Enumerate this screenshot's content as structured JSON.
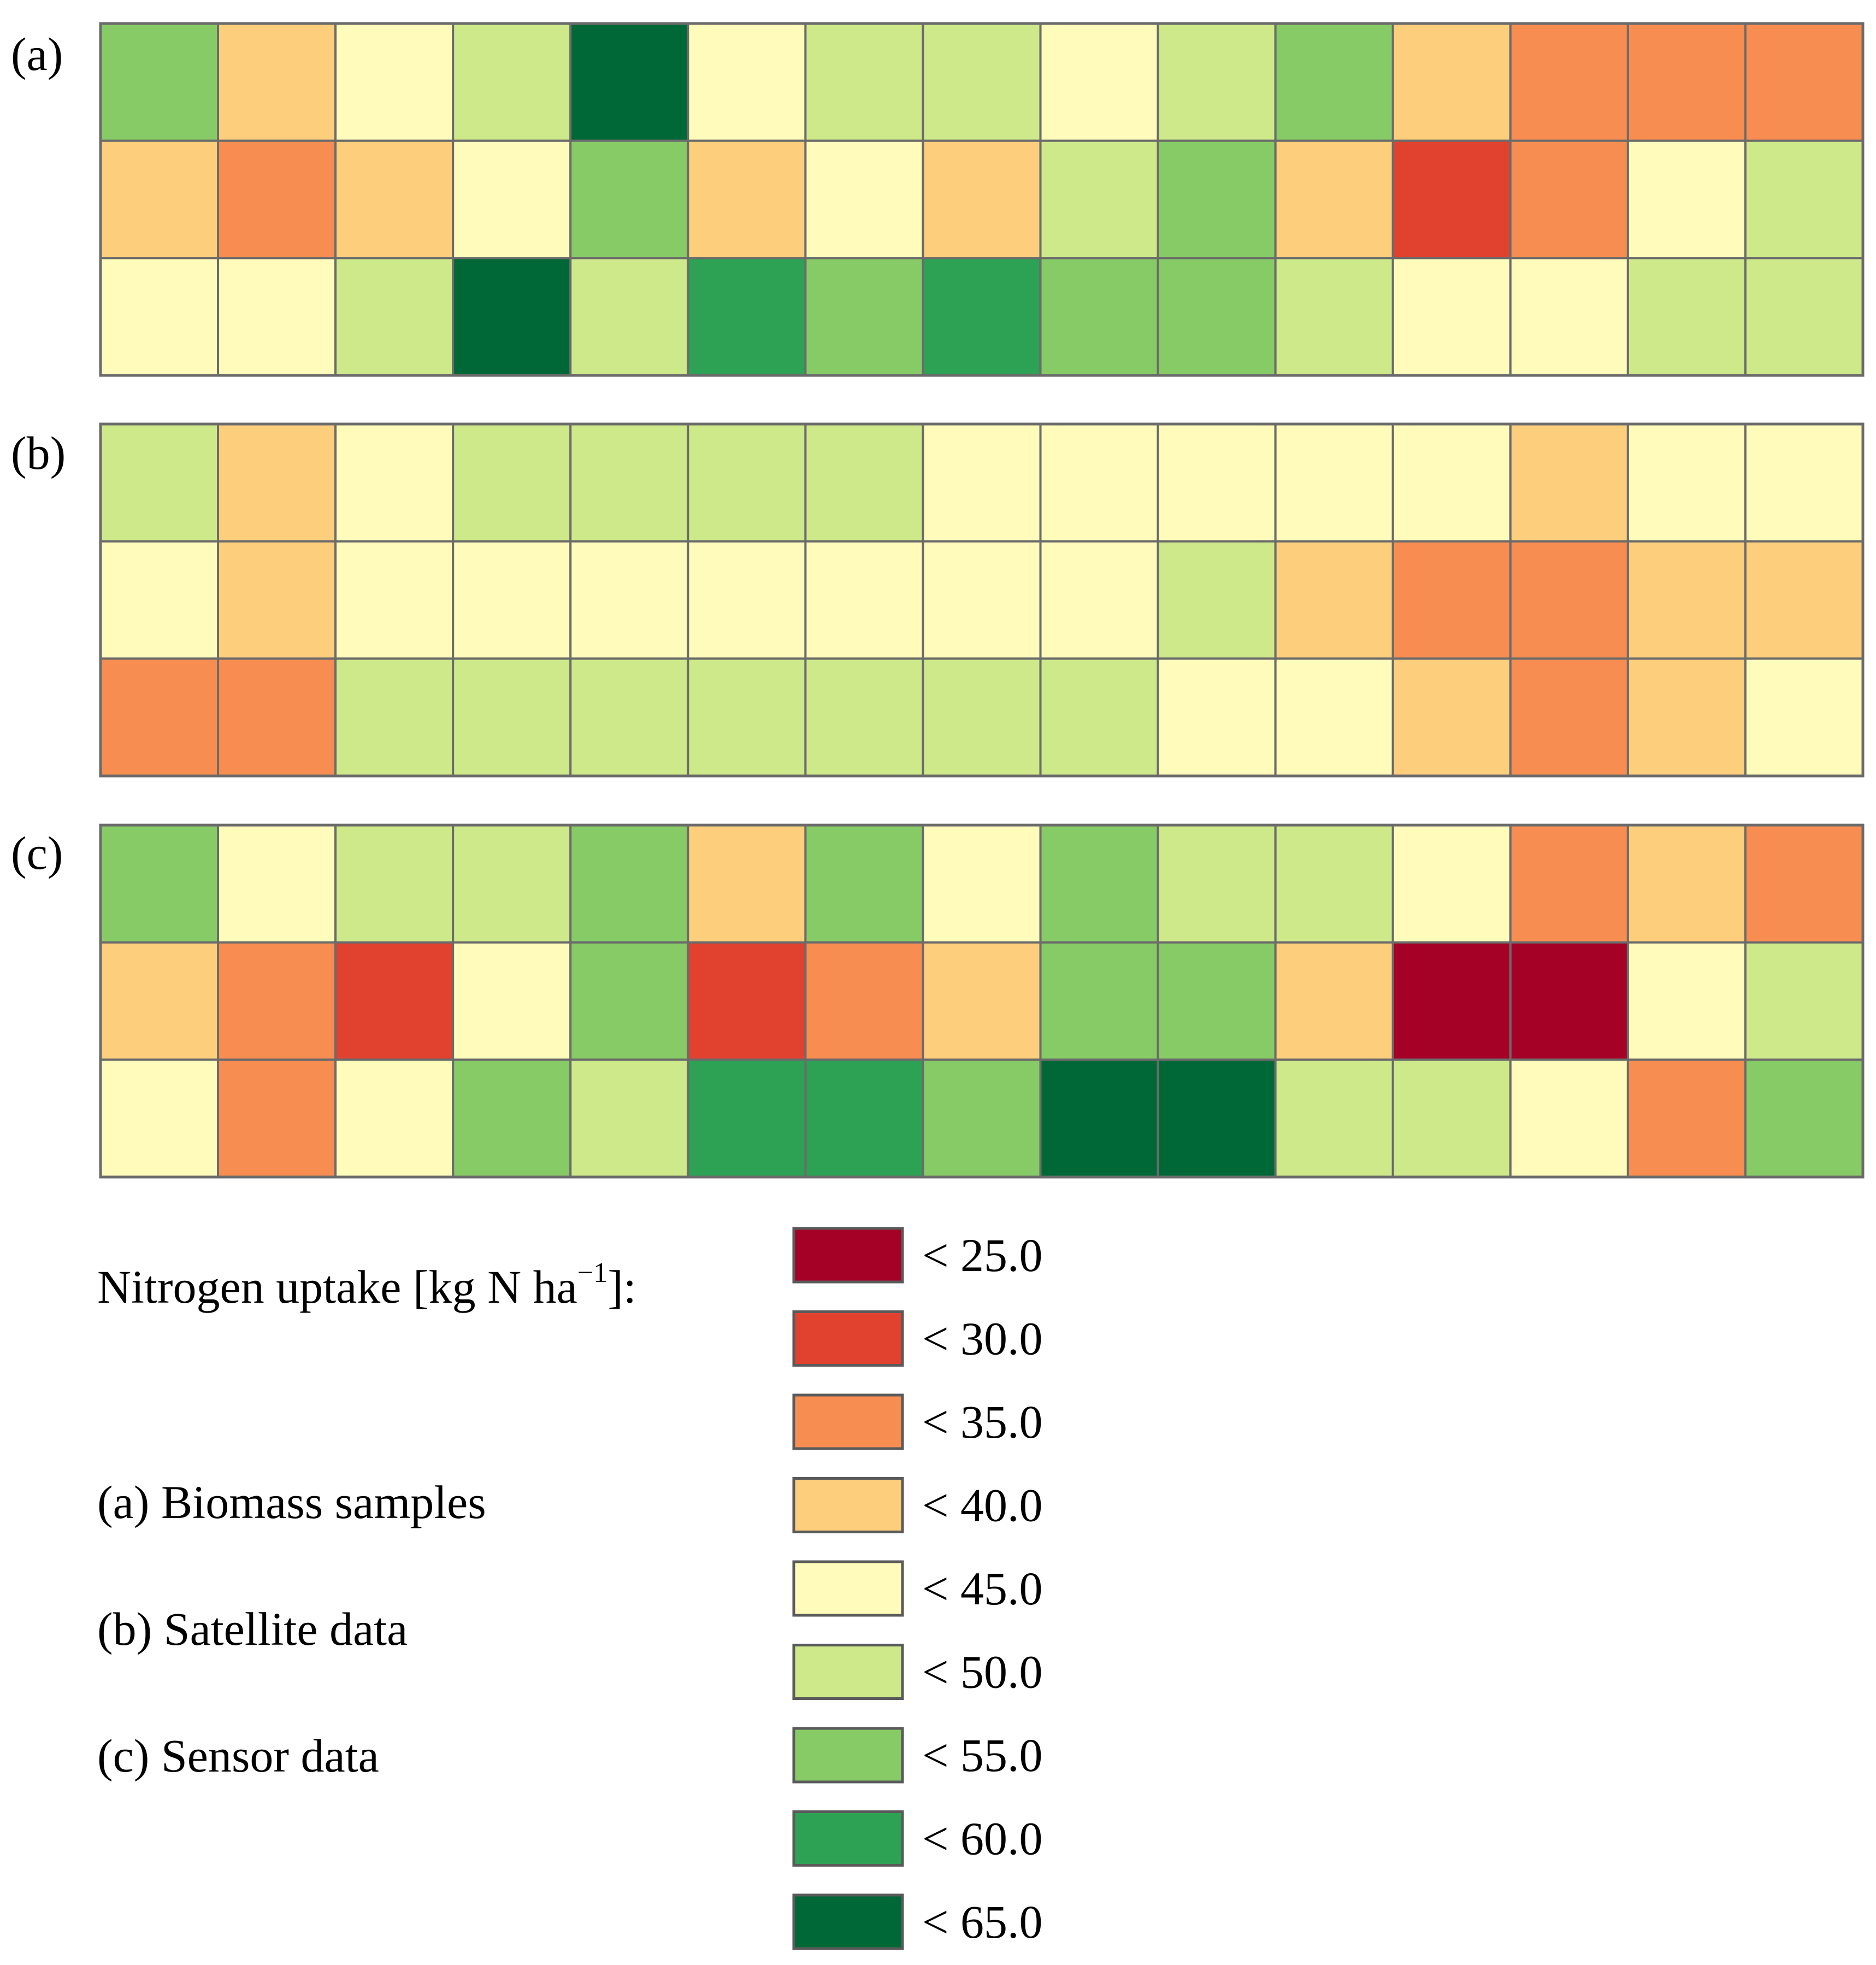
{
  "chart_data": {
    "type": "heatmap",
    "title": "Nitrogen uptake [kg N ha⁻¹]:",
    "rows": 3,
    "columns": 15,
    "legend": {
      "title_main": "Nitrogen uptake [kg N ha",
      "title_sup": "−1",
      "title_end": "]:",
      "classes": [
        {
          "label": "< 25.0",
          "upper": 25.0,
          "color": "#a50026"
        },
        {
          "label": "< 30.0",
          "upper": 30.0,
          "color": "#e0422f"
        },
        {
          "label": "< 35.0",
          "upper": 35.0,
          "color": "#f88d52"
        },
        {
          "label": "< 40.0",
          "upper": 40.0,
          "color": "#fdce7c"
        },
        {
          "label": "< 45.0",
          "upper": 45.0,
          "color": "#fffbbb"
        },
        {
          "label": "< 50.0",
          "upper": 50.0,
          "color": "#cee98a"
        },
        {
          "label": "< 55.0",
          "upper": 55.0,
          "color": "#86cb66"
        },
        {
          "label": "< 60.0",
          "upper": 60.0,
          "color": "#2da154"
        },
        {
          "label": "< 65.0",
          "upper": 65.0,
          "color": "#006837"
        }
      ]
    },
    "panels": [
      {
        "label": "(a)",
        "name": "(a) Biomass samples",
        "class_grid": [
          [
            6,
            3,
            4,
            5,
            8,
            4,
            5,
            5,
            4,
            5,
            6,
            3,
            2,
            2,
            2
          ],
          [
            3,
            2,
            3,
            4,
            6,
            3,
            4,
            3,
            5,
            6,
            3,
            1,
            2,
            4,
            5
          ],
          [
            4,
            4,
            5,
            8,
            5,
            7,
            6,
            7,
            6,
            6,
            5,
            4,
            4,
            5,
            5
          ]
        ]
      },
      {
        "label": "(b)",
        "name": "(b) Satellite data",
        "class_grid": [
          [
            5,
            3,
            4,
            5,
            5,
            5,
            5,
            4,
            4,
            4,
            4,
            4,
            3,
            4,
            4
          ],
          [
            4,
            3,
            4,
            4,
            4,
            4,
            4,
            4,
            4,
            5,
            3,
            2,
            2,
            3,
            3
          ],
          [
            2,
            2,
            5,
            5,
            5,
            5,
            5,
            5,
            5,
            4,
            4,
            3,
            2,
            3,
            4
          ]
        ]
      },
      {
        "label": "(c)",
        "name": "(c) Sensor data",
        "class_grid": [
          [
            6,
            4,
            5,
            5,
            6,
            3,
            6,
            4,
            6,
            5,
            5,
            4,
            2,
            3,
            2
          ],
          [
            3,
            2,
            1,
            4,
            6,
            1,
            2,
            3,
            6,
            6,
            3,
            0,
            0,
            4,
            5
          ],
          [
            4,
            2,
            4,
            6,
            5,
            7,
            7,
            6,
            8,
            8,
            5,
            5,
            4,
            2,
            6
          ]
        ]
      }
    ]
  }
}
